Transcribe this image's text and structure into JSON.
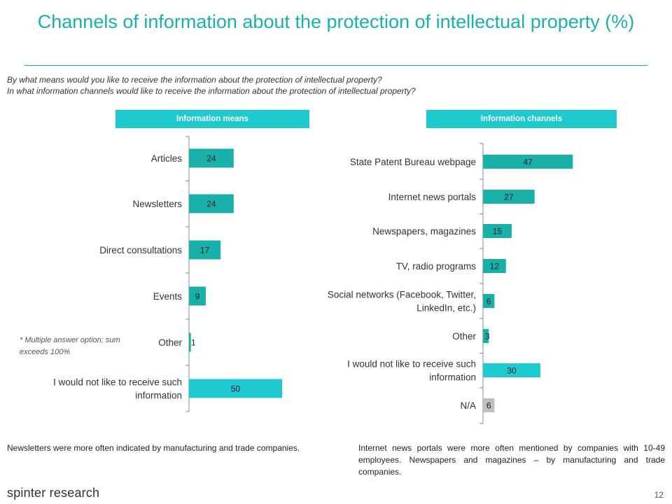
{
  "title": "Channels of information about the protection of intellectual property (%)",
  "questions": [
    "By what means would you like to receive the information about the protection of intellectual property?",
    "In what information channels would like to receive the information about the protection of intellectual property?"
  ],
  "footnote": "* Multiple answer option; sum exceeds 100%",
  "notes": {
    "left": "Newsletters were more often indicated by manufacturing and trade companies.",
    "right": "Internet news portals were more often mentioned by companies with 10-49 employees. Newspapers and magazines – by manufacturing and trade companies."
  },
  "brand": "spinter research",
  "page_number": "12",
  "colors": {
    "accent": "#1ec9cf",
    "title": "#19b0b0",
    "bar_dark": "#1ab0aa",
    "bar_light": "#1ec9cf",
    "bar_grey": "#bfbfbf"
  },
  "chart_data": [
    {
      "type": "bar",
      "orientation": "horizontal",
      "title": "Information means",
      "categories": [
        "Articles",
        "Newsletters",
        "Direct consultations",
        "Events",
        "Other",
        "I would not like to receive such information"
      ],
      "values": [
        24,
        24,
        17,
        9,
        1,
        50
      ],
      "xlim": [
        0,
        50
      ],
      "grid": false
    },
    {
      "type": "bar",
      "orientation": "horizontal",
      "title": "Information channels",
      "categories": [
        "State Patent Bureau webpage",
        "Internet news portals",
        "Newspapers, magazines",
        "TV, radio programs",
        "Social networks (Facebook, Twitter, LinkedIn, etc.)",
        "Other",
        "I would not like to receive such information",
        "N/A"
      ],
      "values": [
        47,
        27,
        15,
        12,
        6,
        3,
        30,
        6
      ],
      "xlim": [
        0,
        47
      ],
      "grid": false
    }
  ]
}
